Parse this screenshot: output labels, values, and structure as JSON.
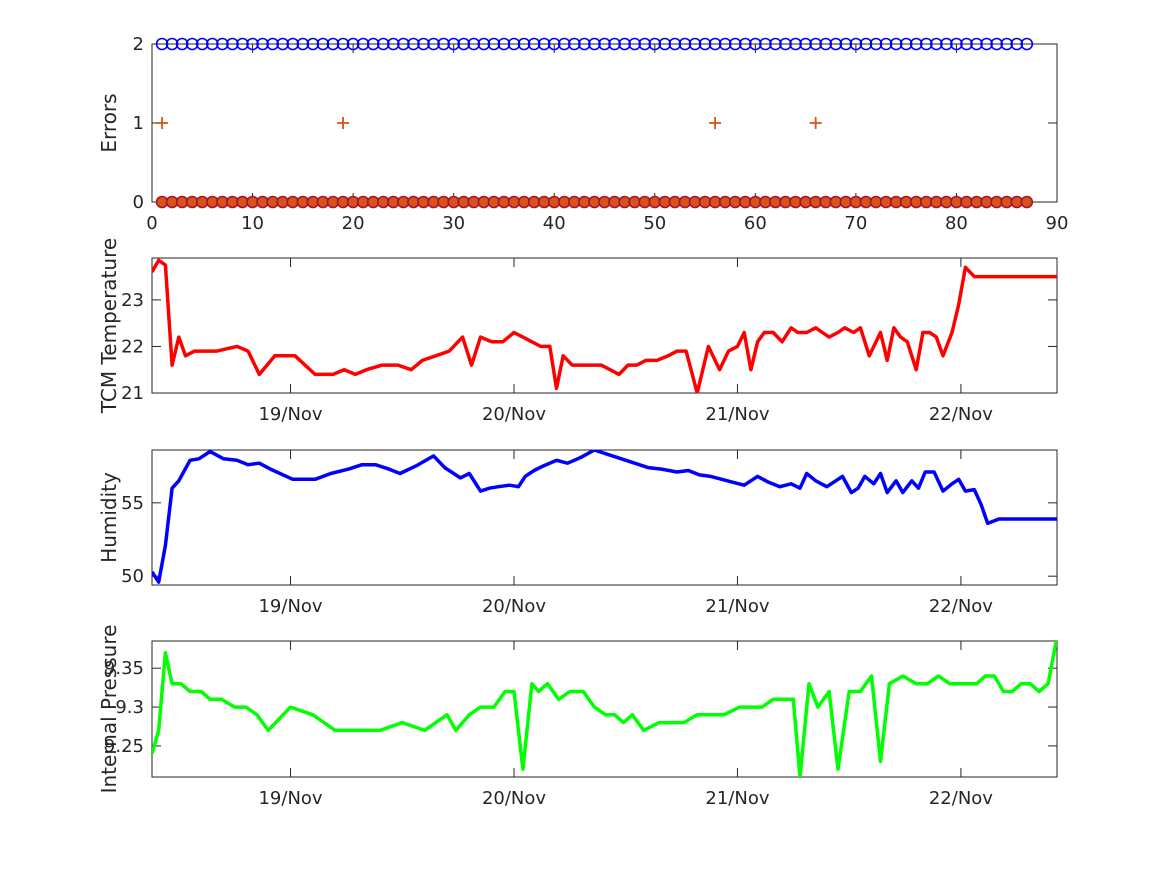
{
  "chart_data": [
    {
      "type": "scatter",
      "ylabel": "Errors",
      "xlim": [
        0,
        90
      ],
      "ylim": [
        0,
        2
      ],
      "xticks": [
        0,
        10,
        20,
        30,
        40,
        50,
        60,
        70,
        80,
        90
      ],
      "yticks": [
        0,
        1,
        2
      ],
      "series": [
        {
          "marker": "circle",
          "color": "#0000ff",
          "x_range": [
            1,
            87
          ],
          "y": 2
        },
        {
          "marker": "circle",
          "color": "#a2142f",
          "fill": "#d95319",
          "x_range": [
            1,
            87
          ],
          "y": 0
        },
        {
          "marker": "plus",
          "color": "#d95319",
          "x": [
            1,
            19,
            56,
            66
          ],
          "y": [
            1,
            1,
            1,
            1
          ]
        }
      ]
    },
    {
      "type": "line",
      "ylabel": "TCM Temperature",
      "color": "#ff0000",
      "xlim": [
        0,
        4.05
      ],
      "ylim": [
        21,
        23.9
      ],
      "yticks": [
        21,
        22,
        23
      ],
      "xtick_labels": [
        "19/Nov",
        "20/Nov",
        "21/Nov",
        "22/Nov"
      ],
      "xtick_positions": [
        0.62,
        1.62,
        2.62,
        3.62
      ],
      "x": [
        0.0,
        0.03,
        0.06,
        0.09,
        0.12,
        0.15,
        0.19,
        0.24,
        0.29,
        0.38,
        0.43,
        0.48,
        0.55,
        0.59,
        0.64,
        0.73,
        0.81,
        0.86,
        0.91,
        0.96,
        1.03,
        1.1,
        1.16,
        1.21,
        1.27,
        1.33,
        1.39,
        1.43,
        1.47,
        1.52,
        1.57,
        1.62,
        1.66,
        1.7,
        1.74,
        1.78,
        1.81,
        1.84,
        1.88,
        1.93,
        1.97,
        2.01,
        2.05,
        2.09,
        2.13,
        2.17,
        2.21,
        2.26,
        2.31,
        2.35,
        2.39,
        2.44,
        2.49,
        2.54,
        2.58,
        2.62,
        2.65,
        2.68,
        2.71,
        2.74,
        2.78,
        2.82,
        2.86,
        2.89,
        2.93,
        2.97,
        3.0,
        3.03,
        3.07,
        3.1,
        3.14,
        3.17,
        3.21,
        3.26,
        3.29,
        3.32,
        3.35,
        3.38,
        3.42,
        3.45,
        3.48,
        3.51,
        3.54,
        3.58,
        3.61,
        3.64,
        3.68,
        3.71,
        3.74,
        3.78,
        3.81,
        3.84,
        3.88,
        3.91,
        3.95,
        3.98,
        4.01,
        4.05
      ],
      "y": [
        23.6,
        23.85,
        23.75,
        21.6,
        22.2,
        21.8,
        21.9,
        21.9,
        21.9,
        22.0,
        21.9,
        21.4,
        21.8,
        21.8,
        21.8,
        21.4,
        21.4,
        21.5,
        21.4,
        21.5,
        21.6,
        21.6,
        21.5,
        21.7,
        21.8,
        21.9,
        22.2,
        21.6,
        22.2,
        22.1,
        22.1,
        22.3,
        22.2,
        22.1,
        22.0,
        22.0,
        21.1,
        21.8,
        21.6,
        21.6,
        21.6,
        21.6,
        21.5,
        21.4,
        21.6,
        21.6,
        21.7,
        21.7,
        21.8,
        21.9,
        21.9,
        21.0,
        22.0,
        21.5,
        21.9,
        22.0,
        22.3,
        21.5,
        22.1,
        22.3,
        22.3,
        22.1,
        22.4,
        22.3,
        22.3,
        22.4,
        22.3,
        22.2,
        22.3,
        22.4,
        22.3,
        22.4,
        21.8,
        22.3,
        21.7,
        22.4,
        22.2,
        22.1,
        21.5,
        22.3,
        22.3,
        22.2,
        21.8,
        22.3,
        22.9,
        23.7,
        23.5,
        23.5,
        23.5,
        23.5,
        23.5,
        23.5,
        23.5,
        23.5,
        23.5,
        23.5,
        23.5,
        23.5
      ]
    },
    {
      "type": "line",
      "ylabel": "Humidity",
      "color": "#0000ff",
      "xlim": [
        0,
        4.05
      ],
      "ylim": [
        49.4,
        58.6
      ],
      "yticks": [
        50,
        55
      ],
      "xtick_labels": [
        "19/Nov",
        "20/Nov",
        "21/Nov",
        "22/Nov"
      ],
      "xtick_positions": [
        0.62,
        1.62,
        2.62,
        3.62
      ],
      "x": [
        0.0,
        0.03,
        0.06,
        0.09,
        0.12,
        0.17,
        0.21,
        0.26,
        0.32,
        0.38,
        0.43,
        0.48,
        0.53,
        0.63,
        0.73,
        0.8,
        0.88,
        0.94,
        1.0,
        1.06,
        1.11,
        1.18,
        1.26,
        1.31,
        1.35,
        1.38,
        1.42,
        1.47,
        1.51,
        1.55,
        1.6,
        1.64,
        1.67,
        1.71,
        1.75,
        1.81,
        1.86,
        1.92,
        1.98,
        2.04,
        2.1,
        2.16,
        2.22,
        2.28,
        2.35,
        2.4,
        2.45,
        2.5,
        2.55,
        2.6,
        2.65,
        2.71,
        2.76,
        2.81,
        2.86,
        2.9,
        2.93,
        2.97,
        3.02,
        3.06,
        3.09,
        3.13,
        3.16,
        3.19,
        3.23,
        3.26,
        3.29,
        3.33,
        3.36,
        3.4,
        3.43,
        3.46,
        3.5,
        3.54,
        3.58,
        3.61,
        3.64,
        3.68,
        3.71,
        3.74,
        3.79,
        3.84,
        3.88,
        3.91,
        3.95,
        3.98,
        4.01,
        4.05
      ],
      "y": [
        50.3,
        49.6,
        52.1,
        56.0,
        56.5,
        57.9,
        58.0,
        58.5,
        58.0,
        57.9,
        57.6,
        57.7,
        57.3,
        56.6,
        56.6,
        57.0,
        57.3,
        57.6,
        57.6,
        57.3,
        57.0,
        57.5,
        58.2,
        57.4,
        57.0,
        56.7,
        57.0,
        55.8,
        56.0,
        56.1,
        56.2,
        56.1,
        56.8,
        57.2,
        57.5,
        57.9,
        57.7,
        58.1,
        58.6,
        58.3,
        58.0,
        57.7,
        57.4,
        57.3,
        57.1,
        57.2,
        56.9,
        56.8,
        56.6,
        56.4,
        56.2,
        56.8,
        56.4,
        56.1,
        56.3,
        56.0,
        57.0,
        56.5,
        56.1,
        56.5,
        56.8,
        55.7,
        56.0,
        56.8,
        56.3,
        57.0,
        55.7,
        56.5,
        55.7,
        56.5,
        56.0,
        57.1,
        57.1,
        55.8,
        56.3,
        56.6,
        55.8,
        55.9,
        54.9,
        53.6,
        53.9,
        53.9,
        53.9,
        53.9,
        53.9,
        53.9,
        53.9,
        53.9
      ]
    },
    {
      "type": "line",
      "ylabel": "Internal Pressure",
      "color": "#00ff00",
      "xlim": [
        0,
        4.05
      ],
      "ylim": [
        9.21,
        9.385
      ],
      "yticks": [
        9.25,
        9.3,
        9.35
      ],
      "xtick_labels": [
        "19/Nov",
        "20/Nov",
        "21/Nov",
        "22/Nov"
      ],
      "xtick_positions": [
        0.62,
        1.62,
        2.62,
        3.62
      ],
      "x": [
        0.0,
        0.03,
        0.06,
        0.09,
        0.13,
        0.17,
        0.22,
        0.26,
        0.31,
        0.37,
        0.42,
        0.47,
        0.52,
        0.62,
        0.72,
        0.82,
        0.92,
        1.02,
        1.12,
        1.22,
        1.27,
        1.32,
        1.36,
        1.42,
        1.47,
        1.53,
        1.58,
        1.62,
        1.66,
        1.7,
        1.73,
        1.77,
        1.82,
        1.87,
        1.93,
        1.98,
        2.03,
        2.07,
        2.11,
        2.15,
        2.2,
        2.27,
        2.33,
        2.38,
        2.44,
        2.5,
        2.56,
        2.63,
        2.68,
        2.73,
        2.78,
        2.83,
        2.87,
        2.9,
        2.94,
        2.98,
        3.03,
        3.07,
        3.12,
        3.17,
        3.22,
        3.26,
        3.3,
        3.36,
        3.42,
        3.47,
        3.52,
        3.57,
        3.61,
        3.65,
        3.69,
        3.73,
        3.77,
        3.81,
        3.85,
        3.89,
        3.93,
        3.97,
        4.01,
        4.05
      ],
      "y": [
        9.24,
        9.27,
        9.37,
        9.33,
        9.33,
        9.32,
        9.32,
        9.31,
        9.31,
        9.3,
        9.3,
        9.29,
        9.27,
        9.3,
        9.29,
        9.27,
        9.27,
        9.27,
        9.28,
        9.27,
        9.28,
        9.29,
        9.27,
        9.29,
        9.3,
        9.3,
        9.32,
        9.32,
        9.22,
        9.33,
        9.32,
        9.33,
        9.31,
        9.32,
        9.32,
        9.3,
        9.29,
        9.29,
        9.28,
        9.29,
        9.27,
        9.28,
        9.28,
        9.28,
        9.29,
        9.29,
        9.29,
        9.3,
        9.3,
        9.3,
        9.31,
        9.31,
        9.31,
        9.21,
        9.33,
        9.3,
        9.32,
        9.22,
        9.32,
        9.32,
        9.34,
        9.23,
        9.33,
        9.34,
        9.33,
        9.33,
        9.34,
        9.33,
        9.33,
        9.33,
        9.33,
        9.34,
        9.34,
        9.32,
        9.32,
        9.33,
        9.33,
        9.32,
        9.33,
        9.39
      ]
    }
  ]
}
